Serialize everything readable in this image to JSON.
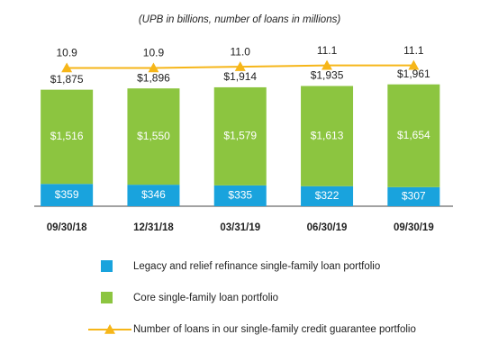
{
  "chart_data": {
    "type": "stacked-bar-line",
    "subtitle": "(UPB in billions, number of loans in millions)",
    "categories": [
      "09/30/18",
      "12/31/18",
      "03/31/19",
      "06/30/19",
      "09/30/19"
    ],
    "series": [
      {
        "name": "Legacy and relief refinance single-family loan portfolio",
        "color": "#19a3dd",
        "values": [
          359,
          346,
          335,
          322,
          307
        ],
        "value_labels": [
          "$359",
          "$346",
          "$335",
          "$322",
          "$307"
        ]
      },
      {
        "name": "Core single-family loan portfolio",
        "color": "#8cc540",
        "values": [
          1516,
          1550,
          1579,
          1613,
          1654
        ],
        "value_labels": [
          "$1,516",
          "$1,550",
          "$1,579",
          "$1,613",
          "$1,654"
        ]
      },
      {
        "name": "Number of loans in our single-family credit guarantee portfolio",
        "color": "#f6b619",
        "axis": "y2",
        "values": [
          10.9,
          10.9,
          11.0,
          11.1,
          11.1
        ],
        "value_labels": [
          "10.9",
          "10.9",
          "11.0",
          "11.1",
          "11.1"
        ]
      }
    ],
    "totals": {
      "values": [
        1875,
        1896,
        1914,
        1935,
        1961
      ],
      "value_labels": [
        "$1,875",
        "$1,896",
        "$1,914",
        "$1,935",
        "$1,961"
      ]
    },
    "ylim": [
      0,
      2000
    ],
    "y2lim": [
      0,
      12
    ]
  }
}
